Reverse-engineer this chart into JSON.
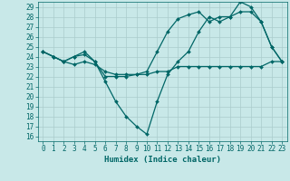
{
  "xlabel": "Humidex (Indice chaleur)",
  "bg_color": "#c8e8e8",
  "grid_color": "#aacccc",
  "line_color": "#006666",
  "xlim": [
    -0.5,
    23.5
  ],
  "ylim": [
    15.5,
    29.5
  ],
  "xticks": [
    0,
    1,
    2,
    3,
    4,
    5,
    6,
    7,
    8,
    9,
    10,
    11,
    12,
    13,
    14,
    15,
    16,
    17,
    18,
    19,
    20,
    21,
    22,
    23
  ],
  "yticks": [
    16,
    17,
    18,
    19,
    20,
    21,
    22,
    23,
    24,
    25,
    26,
    27,
    28,
    29
  ],
  "line1_x": [
    0,
    1,
    2,
    3,
    4,
    5,
    6,
    7,
    8,
    9,
    10,
    11,
    12,
    13,
    14,
    15,
    16,
    17,
    18,
    19,
    20,
    21,
    22,
    23
  ],
  "line1_y": [
    24.5,
    24.0,
    23.5,
    23.2,
    23.5,
    23.2,
    22.5,
    22.2,
    22.2,
    22.2,
    22.2,
    22.5,
    22.5,
    23.0,
    23.0,
    23.0,
    23.0,
    23.0,
    23.0,
    23.0,
    23.0,
    23.0,
    23.5,
    23.5
  ],
  "line2_x": [
    0,
    1,
    2,
    3,
    4,
    5,
    6,
    7,
    8,
    9,
    10,
    11,
    12,
    13,
    14,
    15,
    16,
    17,
    18,
    19,
    20,
    21,
    22,
    23
  ],
  "line2_y": [
    24.5,
    24.0,
    23.5,
    24.0,
    24.2,
    23.5,
    21.5,
    19.5,
    18.0,
    17.0,
    16.2,
    19.5,
    22.2,
    23.5,
    24.5,
    26.5,
    28.0,
    27.5,
    28.0,
    28.5,
    28.5,
    27.5,
    25.0,
    23.5
  ],
  "line3_x": [
    0,
    1,
    2,
    3,
    4,
    5,
    6,
    7,
    8,
    9,
    10,
    11,
    12,
    13,
    14,
    15,
    16,
    17,
    18,
    19,
    20,
    21,
    22,
    23
  ],
  "line3_y": [
    24.5,
    24.0,
    23.5,
    24.0,
    24.5,
    23.5,
    22.0,
    22.0,
    22.0,
    22.2,
    22.5,
    24.5,
    26.5,
    27.8,
    28.2,
    28.5,
    27.5,
    28.0,
    28.0,
    29.5,
    29.0,
    27.5,
    25.0,
    23.5
  ],
  "marker": "D",
  "markersize": 2.0,
  "linewidth": 0.9,
  "label_fontsize": 6.5,
  "tick_fontsize": 5.5
}
